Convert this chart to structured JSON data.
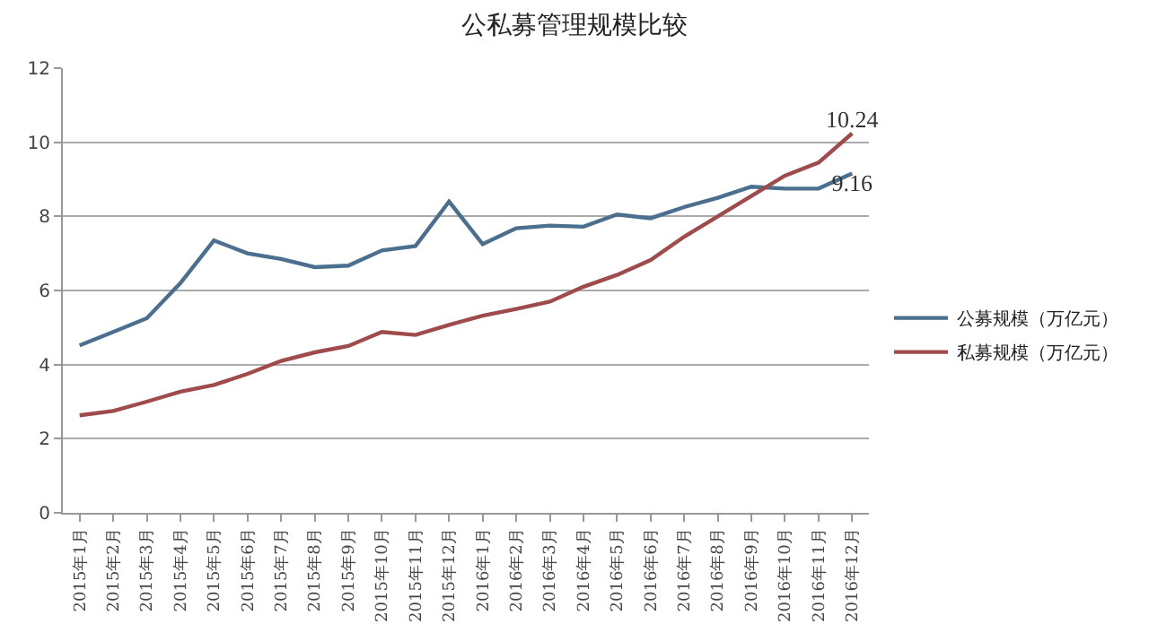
{
  "chart_data": {
    "type": "line",
    "title": "公私募管理规模比较",
    "categories": [
      "2015年1月",
      "2015年2月",
      "2015年3月",
      "2015年4月",
      "2015年5月",
      "2015年6月",
      "2015年7月",
      "2015年8月",
      "2015年9月",
      "2015年10月",
      "2015年11月",
      "2015年12月",
      "2016年1月",
      "2016年2月",
      "2016年3月",
      "2016年4月",
      "2016年5月",
      "2016年6月",
      "2016年7月",
      "2016年8月",
      "2016年9月",
      "2016年10月",
      "2016年11月",
      "2016年12月"
    ],
    "series": [
      {
        "name": "公募规模（万亿元）",
        "color": "#4a6f8f",
        "values": [
          4.52,
          4.88,
          5.25,
          6.2,
          7.35,
          7.0,
          6.85,
          6.63,
          6.67,
          7.08,
          7.2,
          8.4,
          7.25,
          7.68,
          7.75,
          7.72,
          8.05,
          7.95,
          8.25,
          8.5,
          8.8,
          8.75,
          8.75,
          9.16
        ],
        "value_labels": [
          null,
          null,
          null,
          null,
          null,
          null,
          null,
          null,
          null,
          null,
          null,
          null,
          null,
          null,
          null,
          null,
          null,
          null,
          null,
          null,
          null,
          null,
          null,
          "9.16"
        ]
      },
      {
        "name": "私募规模（万亿元）",
        "color": "#a04b4b",
        "values": [
          2.63,
          2.75,
          3.0,
          3.27,
          3.45,
          3.75,
          4.1,
          4.33,
          4.5,
          4.88,
          4.8,
          5.07,
          5.32,
          5.5,
          5.7,
          6.1,
          6.42,
          6.82,
          7.45,
          8.0,
          8.55,
          9.1,
          9.45,
          10.24
        ],
        "value_labels": [
          null,
          null,
          null,
          null,
          null,
          null,
          null,
          null,
          null,
          null,
          null,
          null,
          null,
          null,
          null,
          null,
          null,
          null,
          null,
          null,
          null,
          null,
          null,
          "10.24"
        ]
      }
    ],
    "ylim": [
      0,
      12
    ],
    "yticks": [
      0,
      2,
      4,
      6,
      8,
      10,
      12
    ],
    "grid": "y",
    "legend": "right",
    "marker": "none",
    "line_style": "solid"
  }
}
